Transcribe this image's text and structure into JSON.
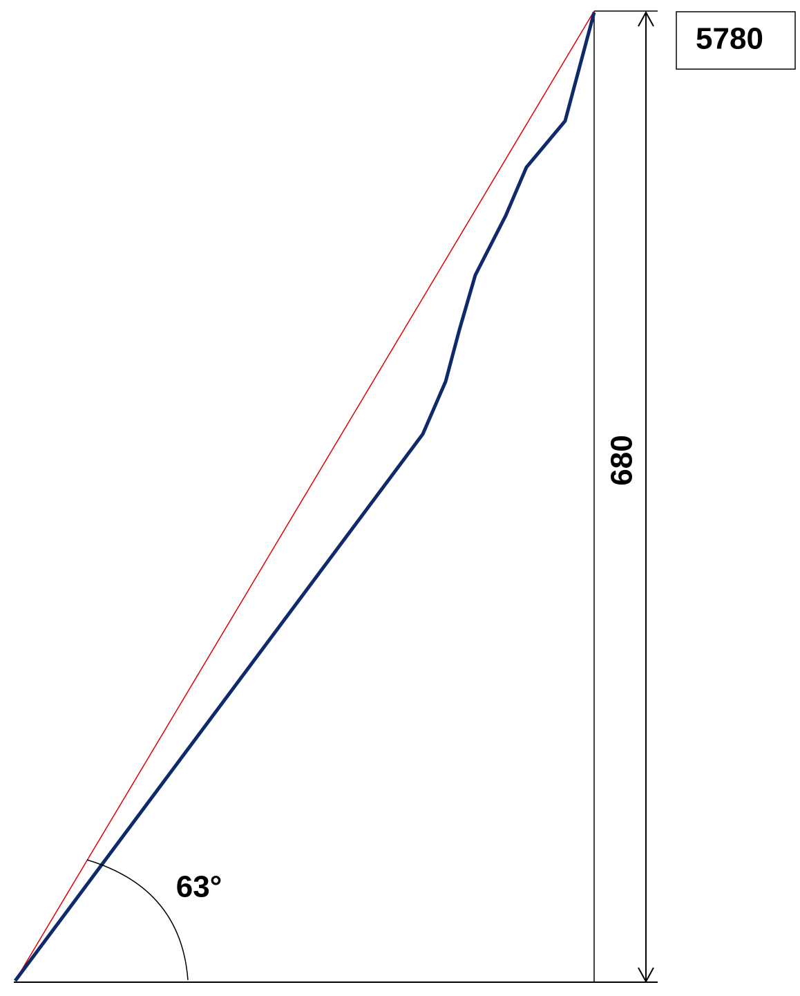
{
  "labels": {
    "box": "5780",
    "height": "680",
    "angle": "63°"
  }
}
